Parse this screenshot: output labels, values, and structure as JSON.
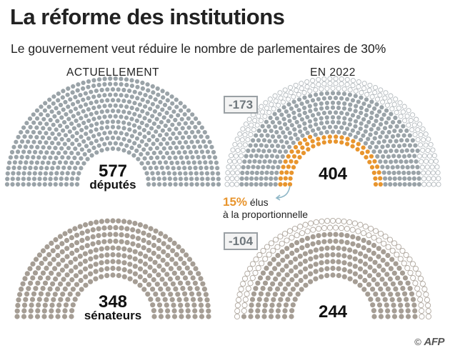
{
  "title": "La réforme des institutions",
  "subtitle": "Le gouvernement veut réduire le nombre de parlementaires de 30%",
  "columns": {
    "current": "ACTUELLEMENT",
    "future": "EN 2022"
  },
  "colors": {
    "deputes_fill": "#9aa3a8",
    "senateurs_fill": "#a59d94",
    "outline_dep": "#b4babe",
    "outline_sen": "#b0a89f",
    "proportional": "#e8952e"
  },
  "deputes": {
    "current": {
      "count": "577",
      "label": "députés"
    },
    "future": {
      "count": "404",
      "delta": "-173",
      "proportional_share": 0.15
    }
  },
  "senateurs": {
    "current": {
      "count": "348",
      "label": "sénateurs"
    },
    "future": {
      "count": "244",
      "delta": "-104"
    }
  },
  "proportional_note": {
    "percent": "15%",
    "line1": "élus",
    "line2": "à la proportionnelle"
  },
  "credit": {
    "symbol": "©",
    "agency": "AFP"
  }
}
